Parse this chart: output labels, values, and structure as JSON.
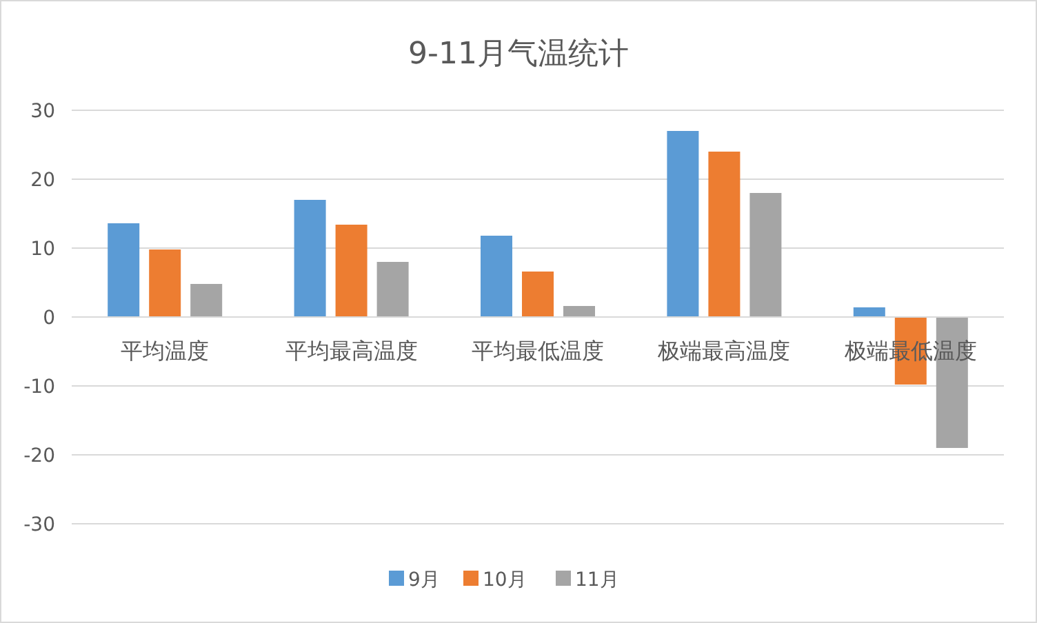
{
  "chart_data": {
    "type": "bar",
    "title": "9-11月气温统计",
    "categories": [
      "平均温度",
      "平均最高温度",
      "平均最低温度",
      "极端最高温度",
      "极端最低温度"
    ],
    "series": [
      {
        "name": "9月",
        "color": "#5b9bd5",
        "values": [
          13.6,
          17.0,
          11.8,
          27.0,
          1.4
        ]
      },
      {
        "name": "10月",
        "color": "#ed7d31",
        "values": [
          9.8,
          13.4,
          6.6,
          24.0,
          -9.8
        ]
      },
      {
        "name": "11月",
        "color": "#a5a5a5",
        "values": [
          4.8,
          8.0,
          1.6,
          18.0,
          -19.0
        ]
      }
    ],
    "ylim": [
      -30,
      30
    ],
    "yticks": [
      -30,
      -20,
      -10,
      0,
      10,
      20,
      30
    ],
    "grid": "y",
    "legend": "bottom"
  }
}
